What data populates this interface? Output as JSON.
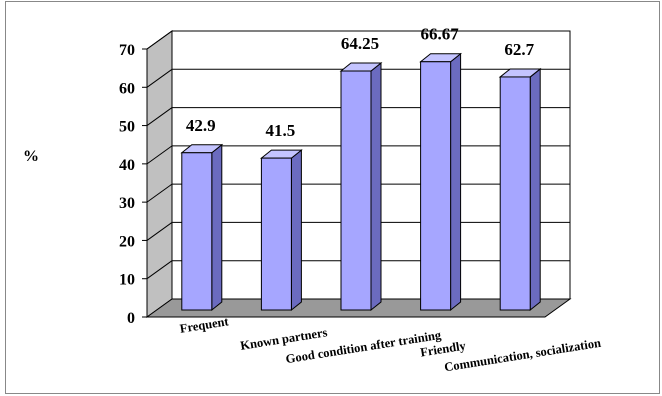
{
  "chart_data": {
    "type": "bar",
    "title": "",
    "xlabel": "",
    "ylabel": "%",
    "ylim": [
      0,
      70
    ],
    "yticks": [
      0,
      10,
      20,
      30,
      40,
      50,
      60,
      70
    ],
    "categories": [
      "Frequent",
      "Known partners",
      "Good condition after training",
      "Friendly",
      "Communication, socialization"
    ],
    "values": [
      42.9,
      41.5,
      64.25,
      66.67,
      62.7
    ],
    "value_labels": [
      "42.9",
      "41.5",
      "64.25",
      "66.67",
      "62.7"
    ],
    "grid": true,
    "legend": "none",
    "style": "3d-column"
  },
  "colors": {
    "bar_front": "#a6a6ff",
    "bar_side": "#6b6bbf",
    "bar_top": "#c4c4ff",
    "wall": "#ffffff",
    "side_wall": "#c0c0c0",
    "floor": "#999999"
  }
}
